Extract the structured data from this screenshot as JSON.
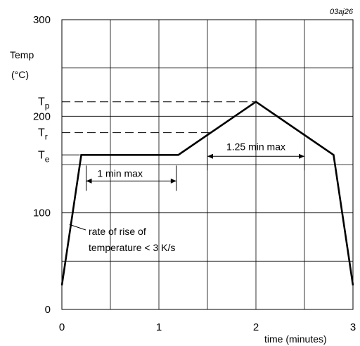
{
  "chart_data": {
    "type": "line",
    "figure_id": "03aj26",
    "xlabel": "time (minutes)",
    "ylabel": "Temp",
    "ylabel_unit": "(°C)",
    "xlim": [
      0,
      3
    ],
    "ylim": [
      0,
      300
    ],
    "x_ticks": [
      "0",
      "1",
      "2",
      "3"
    ],
    "y_ticks": [
      "0",
      "100",
      "200",
      "300"
    ],
    "grid": true,
    "series": [
      {
        "x": [
          0,
          0.2,
          1.2,
          2.0,
          2.8,
          3.0
        ],
        "y": [
          25,
          160,
          160,
          215,
          160,
          25
        ]
      }
    ],
    "levels": [
      {
        "label": "T",
        "sub": "p",
        "value": 215
      },
      {
        "label": "T",
        "sub": "r",
        "value": 183
      },
      {
        "label": "T",
        "sub": "e",
        "value": 160
      }
    ],
    "annotations": [
      {
        "text": "1 min max",
        "x_from": 0.25,
        "x_to": 1.18,
        "y": 133
      },
      {
        "text": "1.25 min max",
        "x_from": 1.5,
        "x_to": 2.5,
        "y": 160
      },
      {
        "text_lines": [
          "rate of rise of",
          "temperature < 3 K/s"
        ],
        "point_x": 0.1,
        "point_y": 85
      }
    ]
  }
}
